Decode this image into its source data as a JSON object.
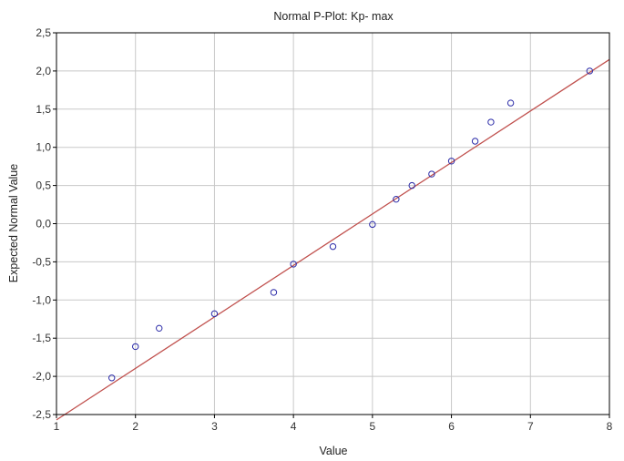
{
  "chart_data": {
    "type": "scatter",
    "title": "Normal P-Plot: Kp- max",
    "xlabel": "Value",
    "ylabel": "Expected Normal Value",
    "xlim": [
      1,
      8
    ],
    "ylim": [
      -2.5,
      2.5
    ],
    "xticks": [
      1,
      2,
      3,
      4,
      5,
      6,
      7,
      8
    ],
    "yticks": [
      -2.5,
      -2.0,
      -1.5,
      -1.0,
      -0.5,
      0.0,
      0.5,
      1.0,
      1.5,
      2.0,
      2.5
    ],
    "decimal_separator": ",",
    "grid": true,
    "series": [
      {
        "points": [
          {
            "x": 1.7,
            "y": -2.02
          },
          {
            "x": 2.0,
            "y": -1.61
          },
          {
            "x": 2.3,
            "y": -1.37
          },
          {
            "x": 3.0,
            "y": -1.18
          },
          {
            "x": 3.75,
            "y": -0.9
          },
          {
            "x": 4.0,
            "y": -0.53
          },
          {
            "x": 4.5,
            "y": -0.3
          },
          {
            "x": 5.0,
            "y": -0.01
          },
          {
            "x": 5.3,
            "y": 0.32
          },
          {
            "x": 5.5,
            "y": 0.5
          },
          {
            "x": 5.75,
            "y": 0.65
          },
          {
            "x": 6.0,
            "y": 0.82
          },
          {
            "x": 6.3,
            "y": 1.08
          },
          {
            "x": 6.5,
            "y": 1.33
          },
          {
            "x": 6.75,
            "y": 1.58
          },
          {
            "x": 7.75,
            "y": 2.0
          }
        ]
      }
    ],
    "fit_line": {
      "x1": 1.0,
      "y1": -2.57,
      "x2": 8.0,
      "y2": 2.15
    },
    "colors": {
      "points": "#2b2ba8",
      "fit_line": "#c0504d",
      "grid": "#c8c8c8",
      "frame": "#000000"
    }
  }
}
